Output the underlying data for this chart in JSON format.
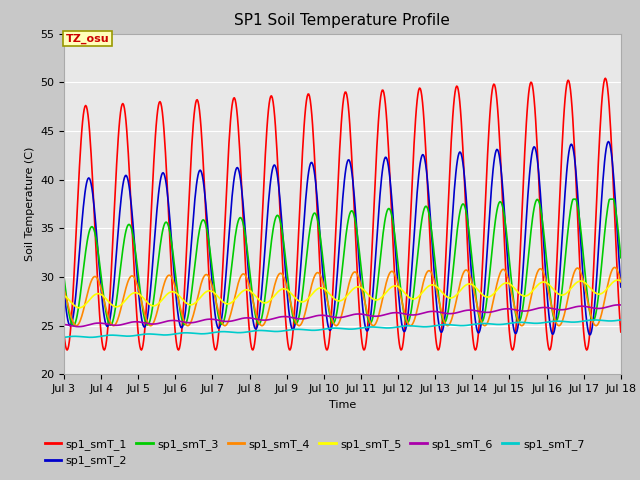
{
  "title": "SP1 Soil Temperature Profile",
  "xlabel": "Time",
  "ylabel": "Soil Temperature (C)",
  "ylim": [
    20,
    55
  ],
  "series_colors": {
    "sp1_smT_1": "#ff0000",
    "sp1_smT_2": "#0000cc",
    "sp1_smT_3": "#00cc00",
    "sp1_smT_4": "#ff8800",
    "sp1_smT_5": "#ffff00",
    "sp1_smT_6": "#aa00aa",
    "sp1_smT_7": "#00cccc"
  },
  "annotation_text": "TZ_osu",
  "annotation_bg": "#ffffbb",
  "annotation_border": "#999900",
  "annotation_color": "#cc0000",
  "fig_bg": "#c8c8c8",
  "plot_bg": "#e8e8e8",
  "title_fontsize": 11,
  "axis_fontsize": 8,
  "tick_fontsize": 8,
  "legend_fontsize": 8
}
